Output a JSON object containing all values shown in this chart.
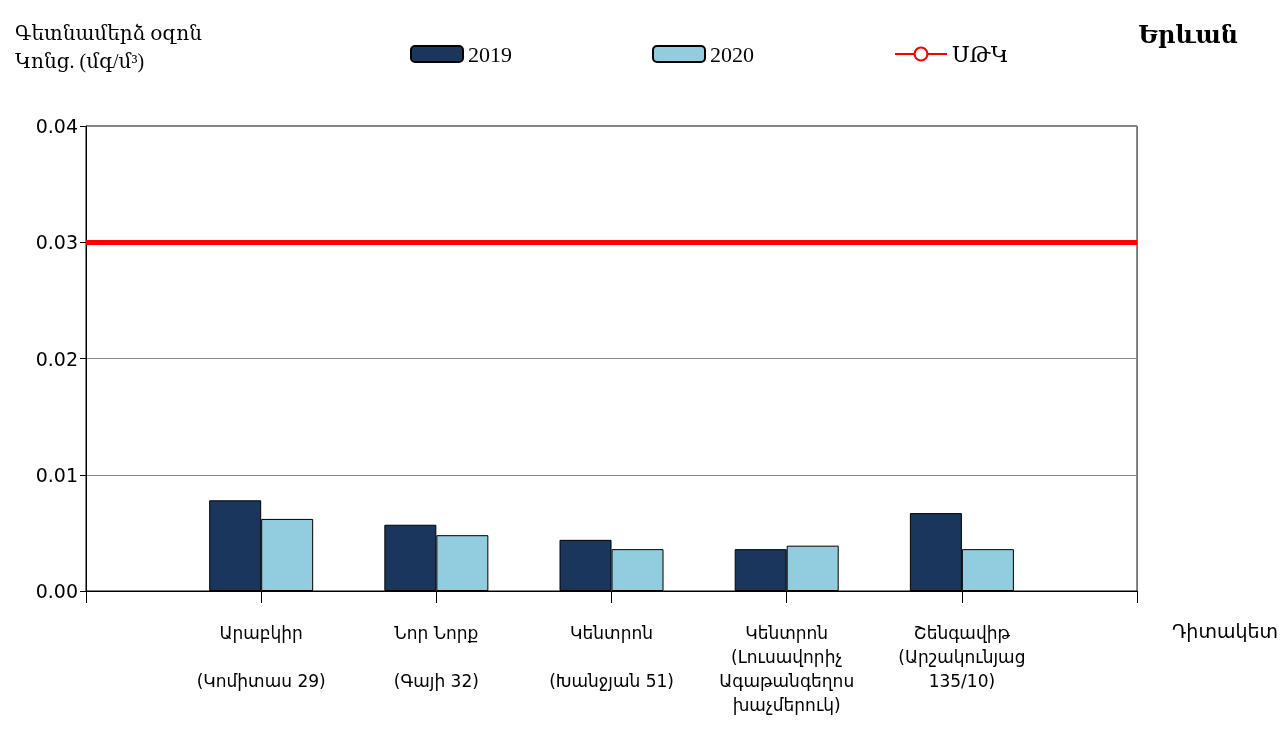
{
  "chart_data": {
    "type": "bar",
    "title": "Երևան",
    "ylabel": "Գետնամերձ օզոն\nԿոնց. (մգ/մ³)",
    "xlabel": "Դիտակետ",
    "categories": [
      null,
      "Արաբկիր\n\n(Կոմիտաս 29)",
      "Նոր Նորք\n\n(Գայի 32)",
      "Կենտրոն\n\n(Խանջյան 51)",
      "Կենտրոն\n(Լուսավորիչ\nԱգաթանգեղոս\nխաչմերուկ)",
      "Շենգավիթ\n(Արշակունյաց\n135/10)",
      null
    ],
    "series": [
      {
        "name": "2019",
        "color": "#1b365d",
        "values": [
          null,
          0.0078,
          0.0057,
          0.0044,
          0.0036,
          0.0067,
          null
        ]
      },
      {
        "name": "2020",
        "color": "#92cddf",
        "values": [
          null,
          0.0062,
          0.0048,
          0.0036,
          0.0039,
          0.0036,
          null
        ]
      }
    ],
    "ref_lines": [
      {
        "axis": "y",
        "value": 0.03,
        "label": "ՍԹԿ",
        "color": "#ff0000"
      }
    ],
    "ylim": [
      0,
      0.04
    ],
    "yticks": [
      {
        "value": 0,
        "label": "0.00"
      },
      {
        "value": 0.01,
        "label": "0.01"
      },
      {
        "value": 0.02,
        "label": "0.02"
      },
      {
        "value": 0.03,
        "label": "0.03"
      },
      {
        "value": 0.04,
        "label": "0.04"
      }
    ],
    "grid": "y",
    "legend": "top"
  }
}
